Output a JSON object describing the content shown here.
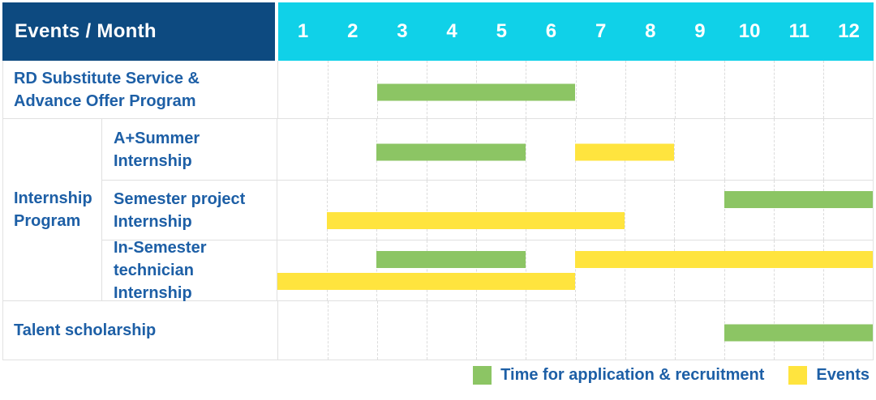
{
  "colors": {
    "header_bg": "#0d4a80",
    "month_header_bg": "#10d1e8",
    "green": "#8cc564",
    "yellow": "#ffe43e",
    "label_text": "#1d5fa6"
  },
  "header": {
    "title": "Events / Month",
    "months": [
      "1",
      "2",
      "3",
      "4",
      "5",
      "6",
      "7",
      "8",
      "9",
      "10",
      "11",
      "12"
    ]
  },
  "chart_data": {
    "type": "gantt",
    "x_unit": "month",
    "x_range": [
      1,
      12
    ],
    "grid": "vertical-dashed-per-month",
    "legend_position": "bottom-right",
    "rows": [
      {
        "group": null,
        "label": "RD Substitute Service & Advance Offer Program",
        "bars": [
          {
            "type": "application",
            "start": 3,
            "end": 6,
            "lane": "center"
          }
        ]
      },
      {
        "group": "Internship Program",
        "label": "A+Summer Internship",
        "bars": [
          {
            "type": "application",
            "start": 3,
            "end": 5,
            "lane": "center"
          },
          {
            "type": "event",
            "start": 7,
            "end": 8,
            "lane": "center"
          }
        ]
      },
      {
        "group": "Internship Program",
        "label": "Semester project Internship",
        "bars": [
          {
            "type": "application",
            "start": 10,
            "end": 12,
            "lane": "top"
          },
          {
            "type": "event",
            "start": 2,
            "end": 7,
            "lane": "bottom"
          }
        ]
      },
      {
        "group": "Internship Program",
        "label": "In-Semester technician Internship",
        "bars": [
          {
            "type": "application",
            "start": 3,
            "end": 5,
            "lane": "top"
          },
          {
            "type": "event",
            "start": 7,
            "end": 12,
            "lane": "top"
          },
          {
            "type": "event",
            "start": 1,
            "end": 6,
            "lane": "bottom"
          }
        ]
      },
      {
        "group": null,
        "label": "Talent scholarship",
        "bars": [
          {
            "type": "application",
            "start": 10,
            "end": 12,
            "lane": "center"
          }
        ]
      }
    ],
    "legend": [
      {
        "label": "Time for application & recruitment",
        "color_key": "green",
        "bar_type": "application"
      },
      {
        "label": "Events",
        "color_key": "yellow",
        "bar_type": "event"
      }
    ]
  }
}
